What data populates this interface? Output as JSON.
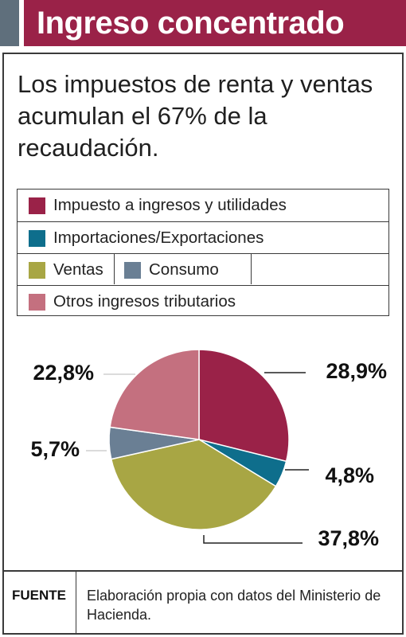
{
  "header": {
    "title": "Ingreso concentrado"
  },
  "subtitle": "Los impuestos de renta y ventas acumulan el 67% de la recaudación.",
  "colors": {
    "header_bar": "#9a2248",
    "header_accent": "#5f6f7c",
    "impuesto_ingresos": "#9a2248",
    "importaciones": "#0e6e8c",
    "ventas": "#a8a644",
    "consumo": "#6a7f94",
    "otros": "#c4707f"
  },
  "legend": {
    "impuesto_ingresos": "Impuesto a ingresos y utilidades",
    "importaciones": "Importaciones/Exportaciones",
    "ventas": "Ventas",
    "consumo": "Consumo",
    "otros": "Otros ingresos tributarios"
  },
  "chart_data": {
    "type": "pie",
    "title": "",
    "slices": [
      {
        "name": "Impuesto a ingresos y utilidades",
        "value": 28.9,
        "label": "28,9%"
      },
      {
        "name": "Importaciones/Exportaciones",
        "value": 4.8,
        "label": "4,8%"
      },
      {
        "name": "Ventas",
        "value": 37.8,
        "label": "37,8%"
      },
      {
        "name": "Consumo",
        "value": 5.7,
        "label": "5,7%"
      },
      {
        "name": "Otros ingresos tributarios",
        "value": 22.8,
        "label": "22,8%"
      }
    ]
  },
  "footer": {
    "label": "FUENTE",
    "text": "Elaboración propia con datos del Ministerio de Hacienda."
  }
}
